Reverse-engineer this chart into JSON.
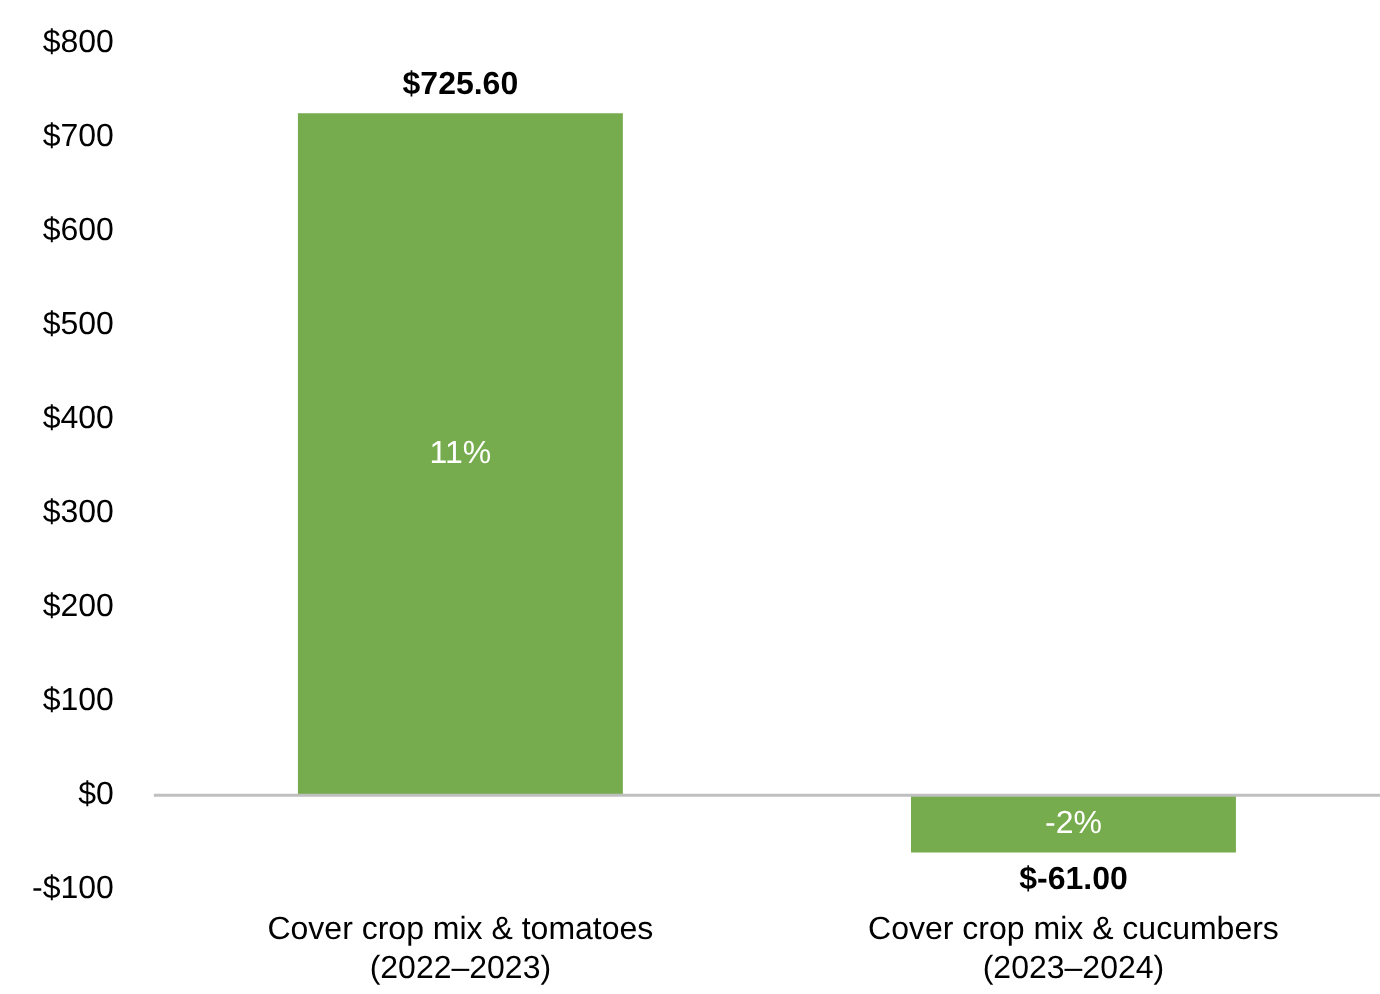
{
  "chart_data": {
    "type": "bar",
    "categories": [
      "Cover crop mix & tomatoes\n(2022–2023)",
      "Cover crop mix & cucumbers\n(2023–2024)"
    ],
    "values": [
      725.6,
      -61.0
    ],
    "value_labels": [
      "$725.60",
      "$-61.00"
    ],
    "color": "#76ab4e",
    "ylim": [
      -100,
      800
    ],
    "yticks": [
      {
        "value": -100,
        "label": "-$100"
      },
      {
        "value": 0,
        "label": "$0"
      },
      {
        "value": 100,
        "label": "$100"
      },
      {
        "value": 200,
        "label": "$200"
      },
      {
        "value": 300,
        "label": "$300"
      },
      {
        "value": 400,
        "label": "$400"
      },
      {
        "value": 500,
        "label": "$500"
      },
      {
        "value": 600,
        "label": "$600"
      },
      {
        "value": 700,
        "label": "$700"
      },
      {
        "value": 800,
        "label": "$800"
      }
    ],
    "annotations": [
      "11%",
      "-2%"
    ],
    "ref_lines": [
      {
        "axis": "y",
        "value": 0,
        "color": "#bfbfbf"
      }
    ],
    "legend": false
  }
}
